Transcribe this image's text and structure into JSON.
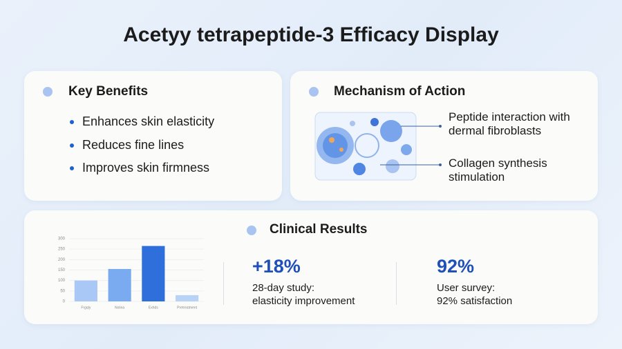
{
  "title": "Acetyy tetrapeptide-3 Efficacy Display",
  "benefits": {
    "title": "Key Benefits",
    "items": [
      "Enhances skin elasticity",
      "Reduces fine lines",
      "Improves skin firmness"
    ]
  },
  "mechanism": {
    "title": "Mechanism of Action",
    "labels": [
      "Peptide interaction with dermal fibroblasts",
      "Collagen synthesis stimulation"
    ]
  },
  "clinical": {
    "title": "Clinical Results",
    "chart_data": {
      "type": "bar",
      "categories": [
        "Frgqly",
        "Nolina",
        "Exhds",
        "Pretreatment"
      ],
      "values": [
        100,
        155,
        265,
        30
      ],
      "colors": [
        "#a9c8f5",
        "#7aaaf0",
        "#2f6fdc",
        "#b9d3f7"
      ],
      "ylim": [
        0,
        300
      ],
      "yticks": [
        0,
        50,
        100,
        150,
        200,
        250,
        300
      ],
      "grid": true
    },
    "stats": [
      {
        "value": "+18%",
        "lines": [
          "28-day study:",
          "elasticity improvement"
        ]
      },
      {
        "value": "92%",
        "lines": [
          "User survey:",
          "92% satisfaction"
        ]
      }
    ]
  }
}
